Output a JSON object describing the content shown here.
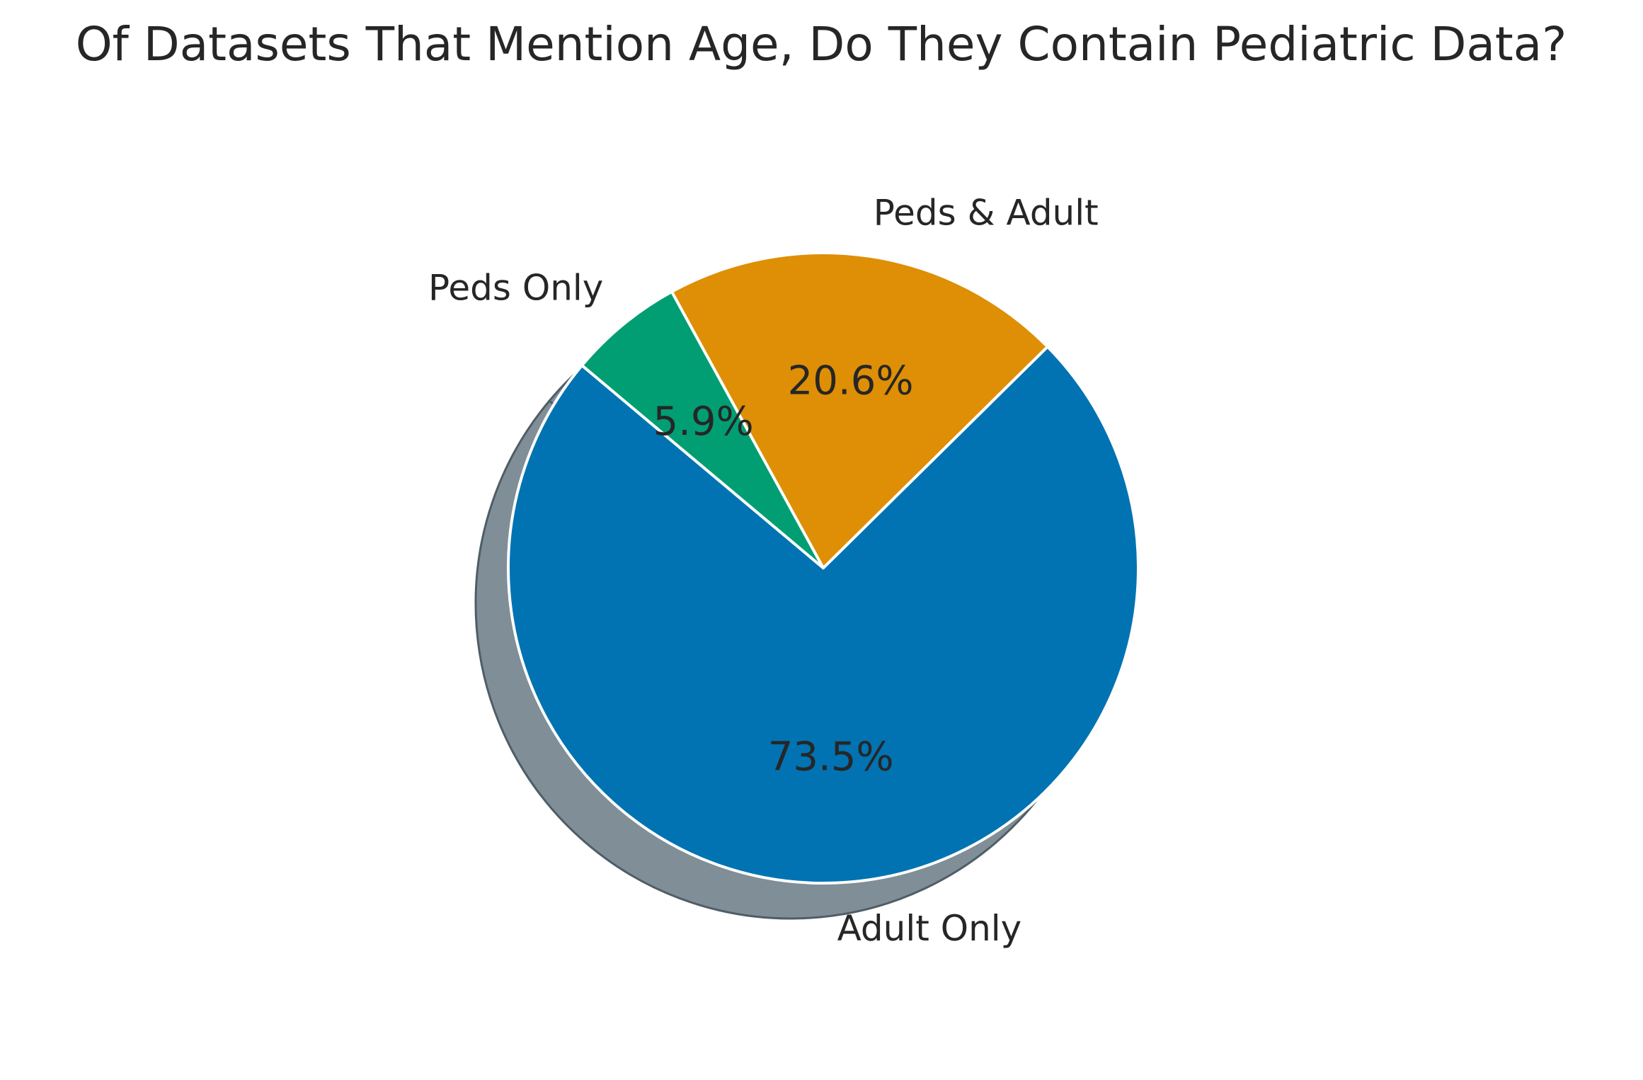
{
  "chart_data": {
    "type": "pie",
    "title": "Of Datasets That Mention Age, Do They Contain Pediatric Data?",
    "start_angle_deg": 140,
    "direction": "counterclockwise",
    "shadow": true,
    "slices": [
      {
        "label": "Adult Only",
        "value": 73.5,
        "pct_label": "73.5%",
        "color": "#0173b2"
      },
      {
        "label": "Peds & Adult",
        "value": 20.6,
        "pct_label": "20.6%",
        "color": "#de8f05"
      },
      {
        "label": "Peds Only",
        "value": 5.9,
        "pct_label": "5.9%",
        "color": "#029e73"
      }
    ],
    "colors": {
      "shadow": "#808e97",
      "edge": "#ffffff",
      "text": "#262626"
    }
  }
}
